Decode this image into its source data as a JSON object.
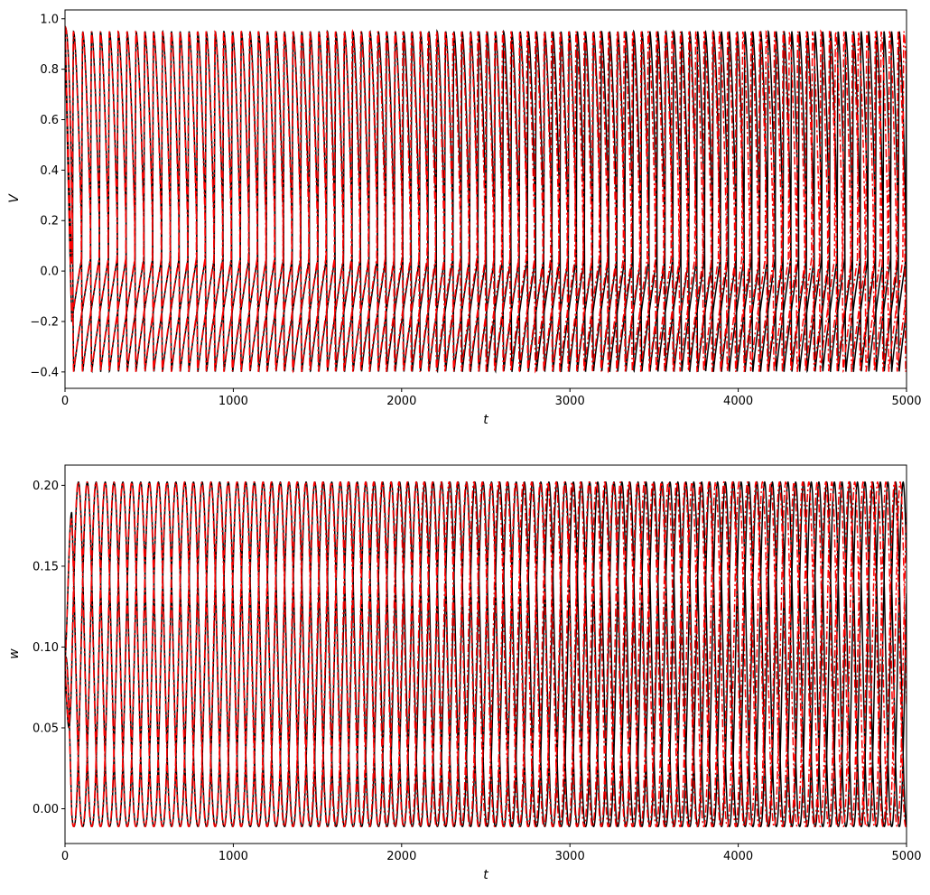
{
  "chart_data": [
    {
      "type": "line",
      "title": "",
      "xlabel": "t",
      "ylabel": "V",
      "xlim": [
        0,
        5000
      ],
      "ylim": [
        -0.465,
        1.035
      ],
      "xticks": [
        0,
        1000,
        2000,
        3000,
        4000,
        5000
      ],
      "xtick_labels": [
        "0",
        "1000",
        "2000",
        "3000",
        "4000",
        "5000"
      ],
      "yticks": [
        -0.4,
        -0.2,
        0.0,
        0.2,
        0.4,
        0.6,
        0.8,
        1.0
      ],
      "ytick_labels": [
        "−0.4",
        "−0.2",
        "0.0",
        "0.2",
        "0.4",
        "0.6",
        "0.8",
        "1.0"
      ],
      "grid": false,
      "legend": "none",
      "signal": {
        "kind": "relaxation-oscillation",
        "min": -0.4,
        "max": 0.95,
        "start_value": 0.97,
        "period_start": 160,
        "period_end": 135,
        "traces_per_series": 3
      },
      "series": [
        {
          "color": "#000000",
          "style": "solid",
          "phases": [
            0,
            0.34,
            0.67
          ],
          "drift": 0.0
        },
        {
          "color": "#ff0000",
          "style": "dashdot",
          "phases": [
            0.01,
            0.35,
            0.68
          ],
          "drift": 0.04
        }
      ]
    },
    {
      "type": "line",
      "title": "",
      "xlabel": "t",
      "ylabel": "w",
      "xlim": [
        0,
        5000
      ],
      "ylim": [
        -0.0215,
        0.2125
      ],
      "xticks": [
        0,
        1000,
        2000,
        3000,
        4000,
        5000
      ],
      "xtick_labels": [
        "0",
        "1000",
        "2000",
        "3000",
        "4000",
        "5000"
      ],
      "yticks": [
        0.0,
        0.05,
        0.1,
        0.15,
        0.2
      ],
      "ytick_labels": [
        "0.00",
        "0.05",
        "0.10",
        "0.15",
        "0.20"
      ],
      "grid": false,
      "legend": "none",
      "signal": {
        "kind": "smooth-oscillation",
        "min": -0.011,
        "max": 0.202,
        "start_value": 0.09,
        "period_start": 160,
        "period_end": 135,
        "traces_per_series": 3
      },
      "series": [
        {
          "color": "#000000",
          "style": "solid",
          "phases": [
            0,
            0.34,
            0.67
          ],
          "drift": 0.0
        },
        {
          "color": "#ff0000",
          "style": "dashdot",
          "phases": [
            0.01,
            0.35,
            0.68
          ],
          "drift": 0.04
        }
      ]
    }
  ]
}
